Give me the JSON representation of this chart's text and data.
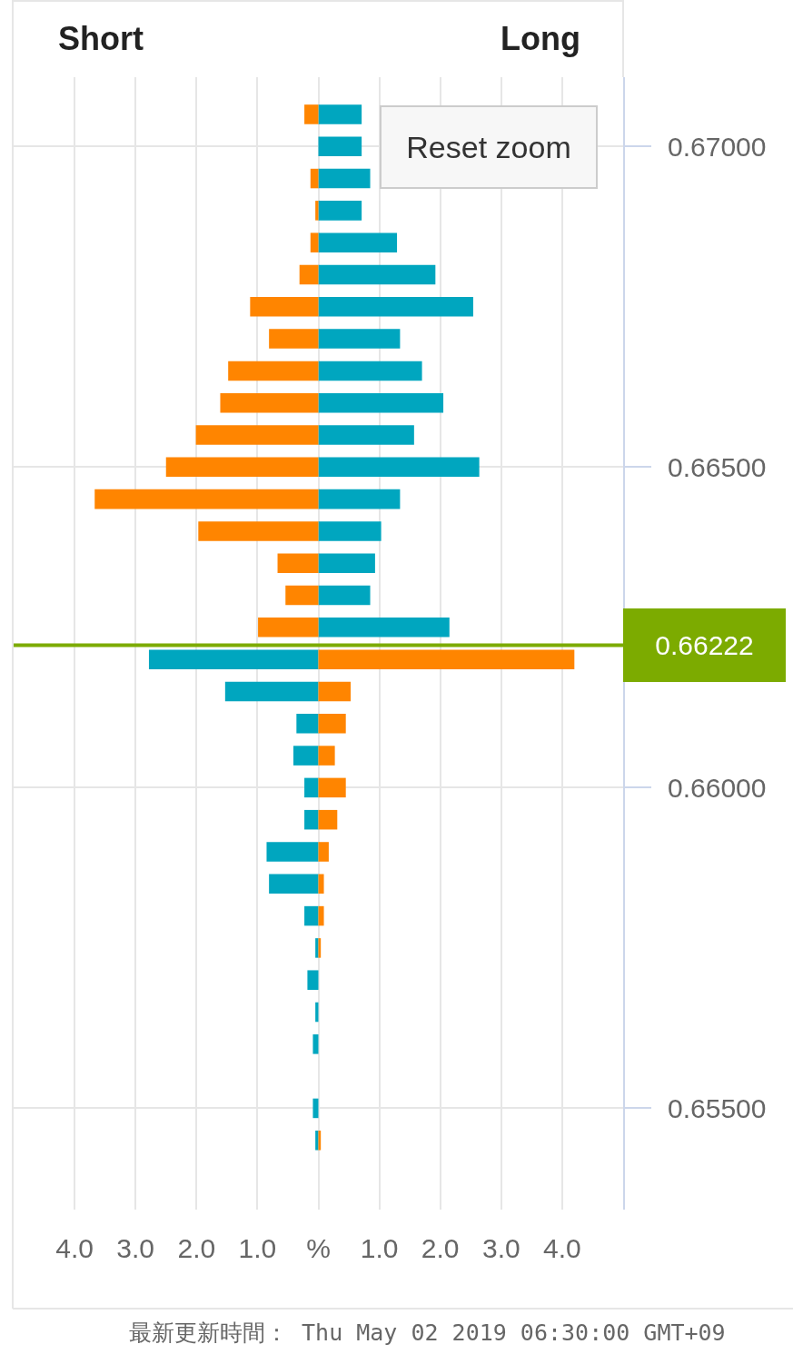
{
  "chart_data": {
    "type": "bar",
    "orientation": "horizontal",
    "stacked": true,
    "annotations": [
      "Short",
      "Long",
      "Reset zoom",
      "最新更新時間： Thu May 02 2019 06:30:00 GMT+09"
    ],
    "x": [
      0.6705,
      0.67,
      0.6695,
      0.669,
      0.6685,
      0.668,
      0.6675,
      0.667,
      0.6665,
      0.666,
      0.6655,
      0.665,
      0.6645,
      0.664,
      0.6635,
      0.663,
      0.6625,
      0.662,
      0.6615,
      0.661,
      0.6605,
      0.66,
      0.6595,
      0.659,
      0.6585,
      0.658,
      0.6575,
      0.657,
      0.6565,
      0.656,
      0.6555,
      0.655,
      0.6545
    ],
    "series": [
      {
        "color": "#00a6bf",
        "values": [
          0.71,
          0.71,
          0.85,
          0.71,
          1.29,
          1.92,
          2.54,
          1.34,
          1.7,
          2.05,
          1.57,
          2.64,
          1.34,
          1.03,
          0.93,
          0.85,
          2.15,
          -2.78,
          -1.53,
          -0.36,
          -0.41,
          -0.23,
          -0.23,
          -0.85,
          -0.81,
          -0.23,
          -0.05,
          -0.18,
          -0.05,
          -0.09,
          null,
          -0.09,
          -0.05
        ]
      },
      {
        "color": "#ff8500",
        "values": [
          -0.23,
          null,
          -0.13,
          -0.05,
          -0.13,
          -0.31,
          -1.12,
          -0.81,
          -1.48,
          -1.61,
          -2.01,
          -2.5,
          -3.67,
          -1.97,
          -0.67,
          -0.54,
          -0.99,
          4.2,
          0.53,
          0.45,
          0.27,
          0.45,
          0.31,
          0.17,
          0.09,
          0.09,
          0.04,
          null,
          null,
          null,
          null,
          null,
          0.04
        ]
      }
    ],
    "xlim": [
      -5,
      5
    ],
    "xticks": [
      {
        "value": -4,
        "label": "4.0"
      },
      {
        "value": -3,
        "label": "3.0"
      },
      {
        "value": -2,
        "label": "2.0"
      },
      {
        "value": -1,
        "label": "1.0"
      },
      {
        "value": 0,
        "label": "%"
      },
      {
        "value": 1,
        "label": "1.0"
      },
      {
        "value": 2,
        "label": "2.0"
      },
      {
        "value": 3,
        "label": "3.0"
      },
      {
        "value": 4,
        "label": "4.0"
      }
    ],
    "ylim": [
      0.65342,
      0.67108
    ],
    "yticks": [
      {
        "value": 0.655,
        "label": "0.65500"
      },
      {
        "value": 0.66,
        "label": "0.66000"
      },
      {
        "value": 0.665,
        "label": "0.66500"
      },
      {
        "value": 0.67,
        "label": "0.67000"
      }
    ],
    "ref_lines": [
      {
        "axis": "y",
        "value": 0.66222,
        "label": "0.66222",
        "color": "#7cab00"
      }
    ],
    "grid": true
  }
}
